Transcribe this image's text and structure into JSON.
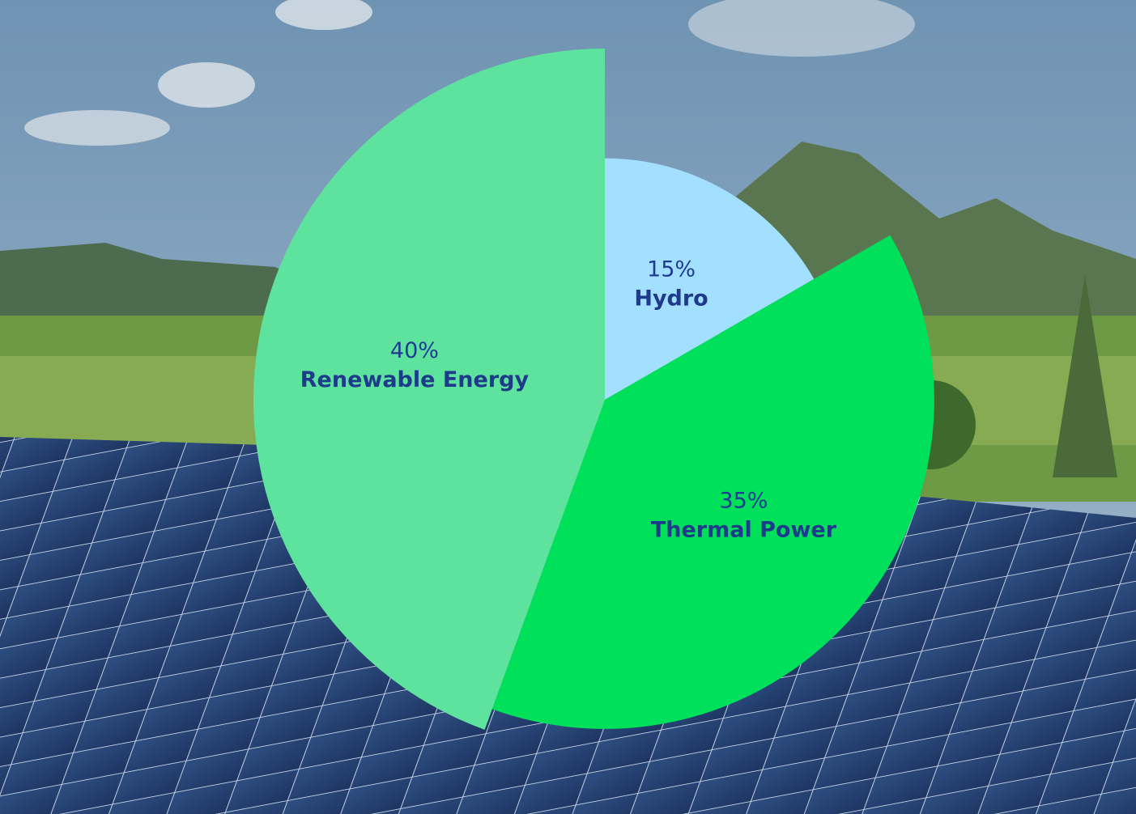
{
  "chart_data": {
    "type": "pie",
    "categories": [
      "Hydro",
      "Thermal Power",
      "Renewable Energy"
    ],
    "values": [
      15,
      35,
      40
    ],
    "value_labels": [
      "15%",
      "35%",
      "40%"
    ],
    "colors": [
      "#a3dfff",
      "#00e05a",
      "#5ee39e"
    ]
  }
}
